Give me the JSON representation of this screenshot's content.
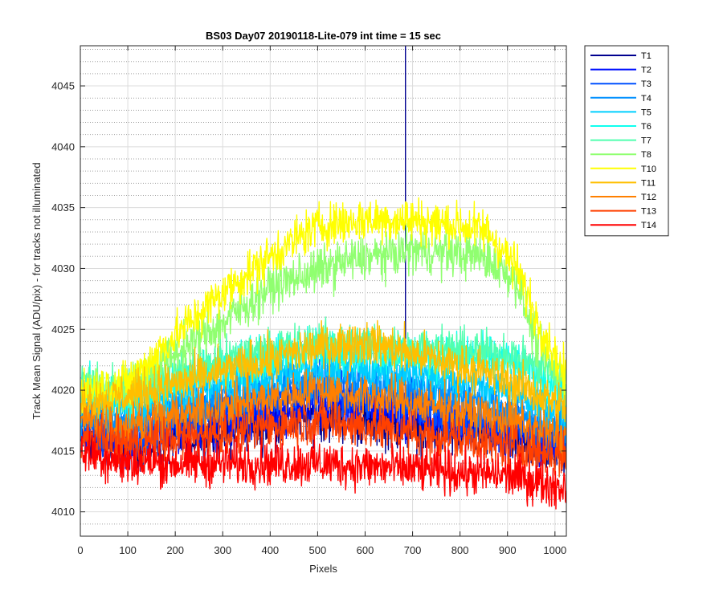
{
  "chart_data": {
    "type": "line",
    "title": "BS03 Day07 20190118-Lite-079 int time = 15 sec",
    "xlabel": "Pixels",
    "ylabel": "Track Mean Signal (ADU/pix) - for tracks not illuminated",
    "xlim": [
      0,
      1024
    ],
    "ylim": [
      4008,
      4048.3
    ],
    "x_ticks": [
      0,
      100,
      200,
      300,
      400,
      500,
      600,
      700,
      800,
      900,
      1000
    ],
    "y_ticks": [
      4010,
      4015,
      4020,
      4025,
      4030,
      4035,
      4040,
      4045
    ],
    "y_minor_step": 1,
    "grid": true,
    "minor_grid": true,
    "legend_position": "outside-top-right",
    "series": [
      {
        "name": "T1",
        "color": "#00008F",
        "profile": [
          [
            0,
            4016
          ],
          [
            80,
            4015.5
          ],
          [
            300,
            4016.5
          ],
          [
            500,
            4018
          ],
          [
            700,
            4017
          ],
          [
            900,
            4016
          ],
          [
            1024,
            4015
          ]
        ],
        "noise": 1.8,
        "spike": {
          "x": 685,
          "top": 4048.3,
          "bottom": 4026
        }
      },
      {
        "name": "T2",
        "color": "#0010FF",
        "profile": [
          [
            0,
            4016.5
          ],
          [
            100,
            4016
          ],
          [
            300,
            4017.5
          ],
          [
            500,
            4019
          ],
          [
            700,
            4018
          ],
          [
            900,
            4016.5
          ],
          [
            1024,
            4015.5
          ]
        ],
        "noise": 1.7
      },
      {
        "name": "T3",
        "color": "#0050FF",
        "profile": [
          [
            0,
            4017
          ],
          [
            100,
            4016.5
          ],
          [
            300,
            4018.5
          ],
          [
            500,
            4020
          ],
          [
            700,
            4019
          ],
          [
            900,
            4017
          ],
          [
            1024,
            4016
          ]
        ],
        "noise": 1.7
      },
      {
        "name": "T4",
        "color": "#0090FF",
        "profile": [
          [
            0,
            4018
          ],
          [
            100,
            4017.5
          ],
          [
            300,
            4019.5
          ],
          [
            500,
            4021
          ],
          [
            700,
            4020.5
          ],
          [
            900,
            4018.5
          ],
          [
            1024,
            4017
          ]
        ],
        "noise": 1.6
      },
      {
        "name": "T5",
        "color": "#00CFFF",
        "profile": [
          [
            0,
            4019
          ],
          [
            100,
            4018.5
          ],
          [
            300,
            4020.5
          ],
          [
            500,
            4022
          ],
          [
            700,
            4021.5
          ],
          [
            900,
            4020
          ],
          [
            1024,
            4018
          ]
        ],
        "noise": 1.6
      },
      {
        "name": "T6",
        "color": "#10FFEF",
        "profile": [
          [
            0,
            4020
          ],
          [
            100,
            4019.5
          ],
          [
            300,
            4022
          ],
          [
            500,
            4023.5
          ],
          [
            700,
            4023
          ],
          [
            900,
            4022.5
          ],
          [
            1024,
            4020
          ]
        ],
        "noise": 1.5
      },
      {
        "name": "T7",
        "color": "#50FFAF",
        "profile": [
          [
            0,
            4020.5
          ],
          [
            100,
            4020
          ],
          [
            300,
            4022.5
          ],
          [
            500,
            4024
          ],
          [
            700,
            4023.5
          ],
          [
            900,
            4023
          ],
          [
            1024,
            4021
          ]
        ],
        "noise": 1.5
      },
      {
        "name": "T8",
        "color": "#90FF70",
        "profile": [
          [
            0,
            4020
          ],
          [
            100,
            4020
          ],
          [
            200,
            4023
          ],
          [
            300,
            4025.5
          ],
          [
            400,
            4028.5
          ],
          [
            550,
            4030.5
          ],
          [
            700,
            4031.5
          ],
          [
            850,
            4031
          ],
          [
            920,
            4029
          ],
          [
            960,
            4024
          ],
          [
            1024,
            4020
          ]
        ],
        "noise": 1.6
      },
      {
        "name": "T10",
        "color": "#FFFF00",
        "profile": [
          [
            0,
            4020
          ],
          [
            100,
            4020.5
          ],
          [
            200,
            4024.5
          ],
          [
            300,
            4028
          ],
          [
            400,
            4031
          ],
          [
            500,
            4033.5
          ],
          [
            600,
            4034
          ],
          [
            700,
            4034
          ],
          [
            800,
            4033.5
          ],
          [
            860,
            4033
          ],
          [
            920,
            4030
          ],
          [
            960,
            4026
          ],
          [
            1024,
            4021
          ]
        ],
        "noise": 1.6
      },
      {
        "name": "T11",
        "color": "#FFBF00",
        "profile": [
          [
            0,
            4019
          ],
          [
            100,
            4019.5
          ],
          [
            300,
            4021.5
          ],
          [
            500,
            4023.5
          ],
          [
            600,
            4024
          ],
          [
            700,
            4023
          ],
          [
            850,
            4021.5
          ],
          [
            950,
            4020
          ],
          [
            1024,
            4018.5
          ]
        ],
        "noise": 1.6
      },
      {
        "name": "T12",
        "color": "#FF8000",
        "profile": [
          [
            0,
            4017.5
          ],
          [
            100,
            4017
          ],
          [
            300,
            4018.5
          ],
          [
            500,
            4020
          ],
          [
            700,
            4019
          ],
          [
            900,
            4017.5
          ],
          [
            1024,
            4016
          ]
        ],
        "noise": 1.6
      },
      {
        "name": "T13",
        "color": "#FF4000",
        "profile": [
          [
            0,
            4016
          ],
          [
            100,
            4015.5
          ],
          [
            300,
            4016.5
          ],
          [
            500,
            4017.5
          ],
          [
            700,
            4016.5
          ],
          [
            900,
            4015.5
          ],
          [
            1024,
            4014.5
          ]
        ],
        "noise": 1.6
      },
      {
        "name": "T14",
        "color": "#FF0000",
        "profile": [
          [
            0,
            4015
          ],
          [
            100,
            4014
          ],
          [
            300,
            4014
          ],
          [
            500,
            4014
          ],
          [
            700,
            4013.5
          ],
          [
            900,
            4013
          ],
          [
            1024,
            4012
          ]
        ],
        "noise": 1.6
      }
    ]
  }
}
